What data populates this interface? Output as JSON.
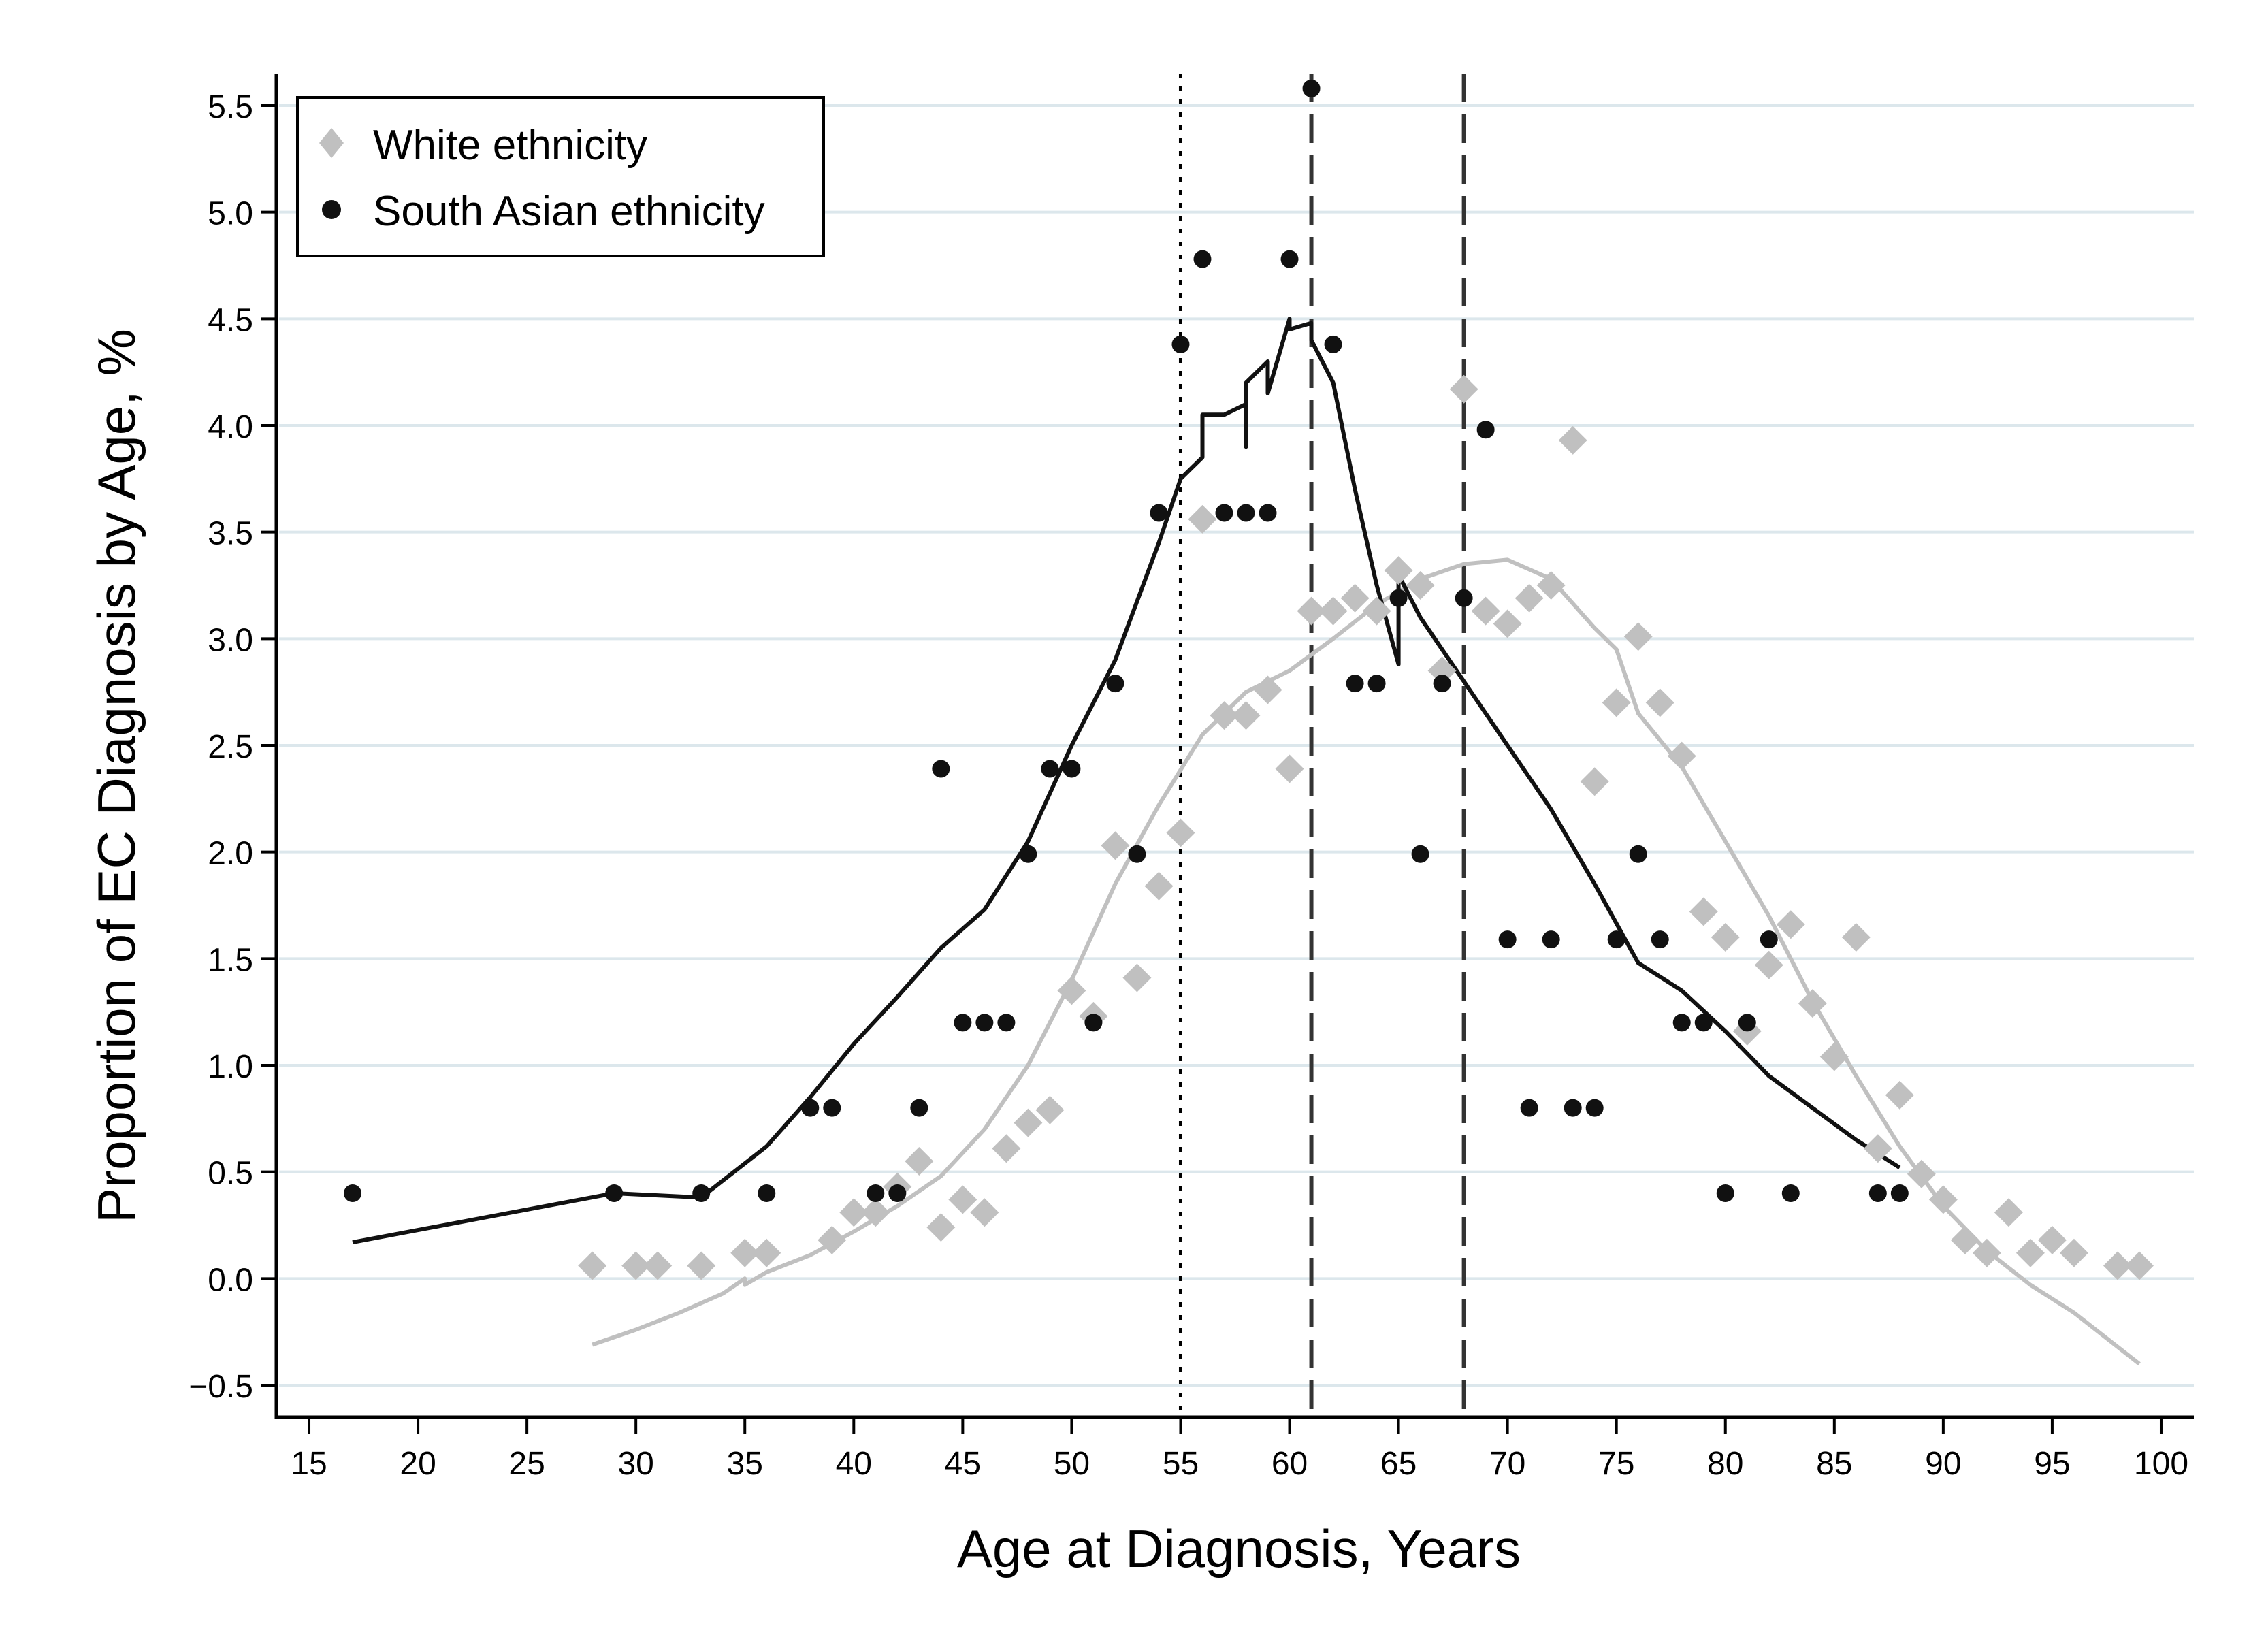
{
  "chart_data": {
    "type": "scatter",
    "title": "",
    "xlabel": "Age at Diagnosis, Years",
    "ylabel": "Proportion of EC Diagnosis by Age, %",
    "xlim": [
      13.5,
      101.5
    ],
    "ylim": [
      -0.65,
      5.65
    ],
    "xticks": [
      15,
      20,
      25,
      30,
      35,
      40,
      45,
      50,
      55,
      60,
      65,
      70,
      75,
      80,
      85,
      90,
      95,
      100
    ],
    "xtick_labels": [
      "15",
      "20",
      "25",
      "30",
      "35",
      "40",
      "45",
      "50",
      "55",
      "60",
      "65",
      "70",
      "75",
      "80",
      "85",
      "90",
      "95",
      "100"
    ],
    "yticks": [
      -0.5,
      0,
      0.5,
      1,
      1.5,
      2,
      2.5,
      3,
      3.5,
      4,
      4.5,
      5,
      5.5
    ],
    "ytick_labels": [
      "−0.5",
      "0.0",
      "0.5",
      "1.0",
      "1.5",
      "2.0",
      "2.5",
      "3.0",
      "3.5",
      "4.0",
      "4.5",
      "5.0",
      "5.5"
    ],
    "grid": "horizontal",
    "legend_position": "top-left",
    "reference_lines": [
      {
        "x": 55,
        "style": "dotted"
      },
      {
        "x": 61,
        "style": "dashed"
      },
      {
        "x": 68,
        "style": "dashed"
      }
    ],
    "colors": {
      "white": "#c0c0c0",
      "south_asian": "#111111",
      "grid": "#dce7ec",
      "axis": "#000000"
    },
    "series": [
      {
        "name": "White ethnicity",
        "marker": "diamond",
        "points": [
          [
            28,
            0.06
          ],
          [
            30,
            0.06
          ],
          [
            31,
            0.06
          ],
          [
            33,
            0.06
          ],
          [
            35,
            0.12
          ],
          [
            36,
            0.12
          ],
          [
            39,
            0.18
          ],
          [
            40,
            0.31
          ],
          [
            41,
            0.31
          ],
          [
            42,
            0.43
          ],
          [
            43,
            0.55
          ],
          [
            44,
            0.24
          ],
          [
            45,
            0.37
          ],
          [
            46,
            0.31
          ],
          [
            47,
            0.61
          ],
          [
            48,
            0.73
          ],
          [
            49,
            0.79
          ],
          [
            50,
            1.35
          ],
          [
            51,
            1.23
          ],
          [
            52,
            2.03
          ],
          [
            53,
            1.41
          ],
          [
            54,
            1.84
          ],
          [
            55,
            2.09
          ],
          [
            56,
            3.56
          ],
          [
            57,
            2.64
          ],
          [
            58,
            2.64
          ],
          [
            59,
            2.76
          ],
          [
            60,
            2.39
          ],
          [
            61,
            3.13
          ],
          [
            62,
            3.13
          ],
          [
            63,
            3.19
          ],
          [
            64,
            3.13
          ],
          [
            65,
            3.32
          ],
          [
            66,
            3.25
          ],
          [
            67,
            2.85
          ],
          [
            68,
            4.17
          ],
          [
            69,
            3.13
          ],
          [
            70,
            3.07
          ],
          [
            71,
            3.19
          ],
          [
            72,
            3.25
          ],
          [
            73,
            3.93
          ],
          [
            74,
            2.33
          ],
          [
            75,
            2.7
          ],
          [
            76,
            3.01
          ],
          [
            77,
            2.7
          ],
          [
            78,
            2.45
          ],
          [
            79,
            1.72
          ],
          [
            80,
            1.6
          ],
          [
            81,
            1.16
          ],
          [
            82,
            1.47
          ],
          [
            83,
            1.66
          ],
          [
            84,
            1.29
          ],
          [
            85,
            1.04
          ],
          [
            86,
            1.6
          ],
          [
            87,
            0.61
          ],
          [
            88,
            0.86
          ],
          [
            89,
            0.49
          ],
          [
            90,
            0.37
          ],
          [
            91,
            0.18
          ],
          [
            92,
            0.12
          ],
          [
            93,
            0.31
          ],
          [
            94,
            0.12
          ],
          [
            95,
            0.18
          ],
          [
            96,
            0.12
          ],
          [
            98,
            0.06
          ],
          [
            99,
            0.06
          ]
        ],
        "smooth": [
          [
            28,
            -0.31
          ],
          [
            30,
            -0.24
          ],
          [
            32,
            -0.16
          ],
          [
            34,
            -0.07
          ],
          [
            35,
            0.0
          ],
          [
            35,
            -0.03
          ],
          [
            36,
            0.03
          ],
          [
            38,
            0.11
          ],
          [
            40,
            0.22
          ],
          [
            42,
            0.34
          ],
          [
            44,
            0.48
          ],
          [
            46,
            0.7
          ],
          [
            48,
            1.0
          ],
          [
            50,
            1.4
          ],
          [
            52,
            1.85
          ],
          [
            54,
            2.22
          ],
          [
            56,
            2.55
          ],
          [
            58,
            2.75
          ],
          [
            60,
            2.85
          ],
          [
            62,
            3.0
          ],
          [
            64,
            3.16
          ],
          [
            66,
            3.28
          ],
          [
            68,
            3.35
          ],
          [
            70,
            3.37
          ],
          [
            72,
            3.28
          ],
          [
            74,
            3.05
          ],
          [
            75,
            2.95
          ],
          [
            76,
            2.65
          ],
          [
            78,
            2.4
          ],
          [
            80,
            2.05
          ],
          [
            82,
            1.7
          ],
          [
            84,
            1.3
          ],
          [
            86,
            0.95
          ],
          [
            88,
            0.62
          ],
          [
            90,
            0.34
          ],
          [
            92,
            0.13
          ],
          [
            94,
            -0.03
          ],
          [
            96,
            -0.16
          ],
          [
            99,
            -0.4
          ]
        ]
      },
      {
        "name": "South Asian ethnicity",
        "marker": "circle",
        "points": [
          [
            17,
            0.4
          ],
          [
            29,
            0.4
          ],
          [
            33,
            0.4
          ],
          [
            36,
            0.4
          ],
          [
            38,
            0.8
          ],
          [
            39,
            0.8
          ],
          [
            41,
            0.4
          ],
          [
            42,
            0.4
          ],
          [
            43,
            0.8
          ],
          [
            44,
            2.39
          ],
          [
            45,
            1.2
          ],
          [
            46,
            1.2
          ],
          [
            47,
            1.2
          ],
          [
            48,
            1.99
          ],
          [
            49,
            2.39
          ],
          [
            50,
            2.39
          ],
          [
            51,
            1.2
          ],
          [
            52,
            2.79
          ],
          [
            53,
            1.99
          ],
          [
            54,
            3.59
          ],
          [
            55,
            4.38
          ],
          [
            56,
            4.78
          ],
          [
            57,
            3.59
          ],
          [
            58,
            3.59
          ],
          [
            59,
            3.59
          ],
          [
            60,
            4.78
          ],
          [
            61,
            5.58
          ],
          [
            62,
            4.38
          ],
          [
            63,
            2.79
          ],
          [
            64,
            2.79
          ],
          [
            65,
            3.19
          ],
          [
            66,
            1.99
          ],
          [
            67,
            2.79
          ],
          [
            68,
            3.19
          ],
          [
            69,
            3.98
          ],
          [
            70,
            1.59
          ],
          [
            71,
            0.8
          ],
          [
            72,
            1.59
          ],
          [
            73,
            0.8
          ],
          [
            74,
            0.8
          ],
          [
            75,
            1.59
          ],
          [
            76,
            1.99
          ],
          [
            77,
            1.59
          ],
          [
            78,
            1.2
          ],
          [
            79,
            1.2
          ],
          [
            80,
            0.4
          ],
          [
            81,
            1.2
          ],
          [
            82,
            1.59
          ],
          [
            83,
            0.4
          ],
          [
            87,
            0.4
          ],
          [
            88,
            0.4
          ]
        ],
        "smooth": [
          [
            17,
            0.17
          ],
          [
            29,
            0.4
          ],
          [
            33,
            0.38
          ],
          [
            36,
            0.62
          ],
          [
            38,
            0.85
          ],
          [
            40,
            1.1
          ],
          [
            42,
            1.32
          ],
          [
            44,
            1.55
          ],
          [
            46,
            1.73
          ],
          [
            48,
            2.05
          ],
          [
            50,
            2.5
          ],
          [
            52,
            2.9
          ],
          [
            54,
            3.45
          ],
          [
            55,
            3.75
          ],
          [
            56,
            3.85
          ],
          [
            56,
            4.05
          ],
          [
            57,
            4.05
          ],
          [
            58,
            4.1
          ],
          [
            58,
            3.9
          ],
          [
            58,
            4.2
          ],
          [
            59,
            4.3
          ],
          [
            59,
            4.15
          ],
          [
            60,
            4.5
          ],
          [
            60,
            4.45
          ],
          [
            61,
            4.48
          ],
          [
            61,
            4.4
          ],
          [
            62,
            4.2
          ],
          [
            63,
            3.7
          ],
          [
            64,
            3.25
          ],
          [
            65,
            2.88
          ],
          [
            65,
            3.3
          ],
          [
            66,
            3.1
          ],
          [
            67,
            2.95
          ],
          [
            68,
            2.8
          ],
          [
            70,
            2.5
          ],
          [
            72,
            2.2
          ],
          [
            74,
            1.85
          ],
          [
            76,
            1.48
          ],
          [
            78,
            1.35
          ],
          [
            80,
            1.16
          ],
          [
            82,
            0.95
          ],
          [
            84,
            0.8
          ],
          [
            86,
            0.65
          ],
          [
            88,
            0.52
          ]
        ]
      }
    ]
  }
}
